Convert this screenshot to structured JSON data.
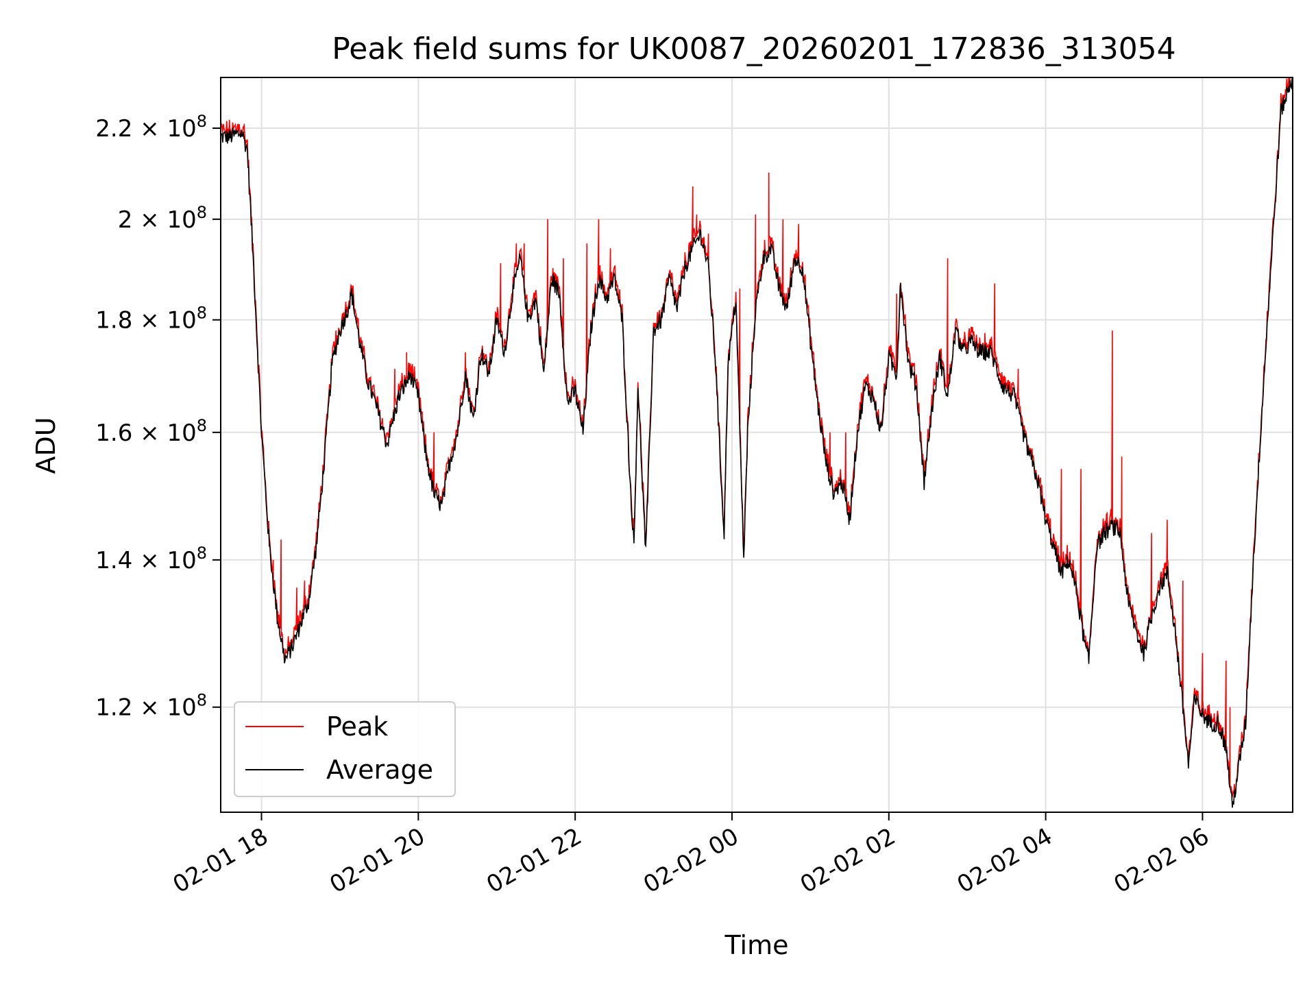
{
  "chart_data": {
    "type": "line",
    "title": "Peak field sums for UK0087_20260201_172836_313054",
    "xlabel": "Time",
    "ylabel": "ADU",
    "yscale": "log",
    "grid": true,
    "legend_position": "lower-left",
    "xlim": [
      17.48,
      31.15
    ],
    "ylim": [
      107500000.0,
      232000000.0
    ],
    "x_ticks": [
      {
        "value": 18,
        "label": "02-01 18"
      },
      {
        "value": 20,
        "label": "02-01 20"
      },
      {
        "value": 22,
        "label": "02-01 22"
      },
      {
        "value": 24,
        "label": "02-02 00"
      },
      {
        "value": 26,
        "label": "02-02 02"
      },
      {
        "value": 28,
        "label": "02-02 04"
      },
      {
        "value": 30,
        "label": "02-02 06"
      }
    ],
    "y_ticks": [
      {
        "value": 120000000.0,
        "mantissa": "1.2",
        "exp": "8"
      },
      {
        "value": 140000000.0,
        "mantissa": "1.4",
        "exp": "8"
      },
      {
        "value": 160000000.0,
        "mantissa": "1.6",
        "exp": "8"
      },
      {
        "value": 180000000.0,
        "mantissa": "1.8",
        "exp": "8"
      },
      {
        "value": 200000000.0,
        "mantissa": "2",
        "exp": "8"
      },
      {
        "value": 220000000.0,
        "mantissa": "2.2",
        "exp": "8"
      }
    ],
    "series": [
      {
        "name": "Peak",
        "color": "#ff0000"
      },
      {
        "name": "Average",
        "color": "#000000"
      }
    ],
    "average_points": [
      [
        17.48,
        218000000.0
      ],
      [
        17.6,
        218000000.0
      ],
      [
        17.75,
        219000000.0
      ],
      [
        17.82,
        215000000.0
      ],
      [
        17.9,
        190000000.0
      ],
      [
        18.0,
        160000000.0
      ],
      [
        18.1,
        142000000.0
      ],
      [
        18.2,
        132000000.0
      ],
      [
        18.3,
        126000000.0
      ],
      [
        18.4,
        128000000.0
      ],
      [
        18.5,
        131000000.0
      ],
      [
        18.6,
        134000000.0
      ],
      [
        18.7,
        142000000.0
      ],
      [
        18.8,
        155000000.0
      ],
      [
        18.9,
        172000000.0
      ],
      [
        19.0,
        178000000.0
      ],
      [
        19.1,
        182000000.0
      ],
      [
        19.15,
        185000000.0
      ],
      [
        19.25,
        176000000.0
      ],
      [
        19.35,
        169000000.0
      ],
      [
        19.45,
        165000000.0
      ],
      [
        19.6,
        158000000.0
      ],
      [
        19.75,
        166000000.0
      ],
      [
        19.9,
        170000000.0
      ],
      [
        20.0,
        166000000.0
      ],
      [
        20.1,
        156000000.0
      ],
      [
        20.2,
        150000000.0
      ],
      [
        20.3,
        148000000.0
      ],
      [
        20.4,
        155000000.0
      ],
      [
        20.5,
        160000000.0
      ],
      [
        20.6,
        170000000.0
      ],
      [
        20.7,
        162000000.0
      ],
      [
        20.8,
        174000000.0
      ],
      [
        20.9,
        170000000.0
      ],
      [
        21.0,
        180000000.0
      ],
      [
        21.1,
        174000000.0
      ],
      [
        21.2,
        185000000.0
      ],
      [
        21.3,
        192000000.0
      ],
      [
        21.4,
        180000000.0
      ],
      [
        21.5,
        184000000.0
      ],
      [
        21.6,
        170000000.0
      ],
      [
        21.7,
        188000000.0
      ],
      [
        21.8,
        185000000.0
      ],
      [
        21.9,
        165000000.0
      ],
      [
        22.0,
        167000000.0
      ],
      [
        22.1,
        160000000.0
      ],
      [
        22.2,
        178000000.0
      ],
      [
        22.3,
        188000000.0
      ],
      [
        22.4,
        184000000.0
      ],
      [
        22.5,
        188000000.0
      ],
      [
        22.6,
        180000000.0
      ],
      [
        22.7,
        152000000.0
      ],
      [
        22.75,
        142000000.0
      ],
      [
        22.8,
        168000000.0
      ],
      [
        22.9,
        141000000.0
      ],
      [
        23.0,
        178000000.0
      ],
      [
        23.1,
        180000000.0
      ],
      [
        23.2,
        188000000.0
      ],
      [
        23.3,
        182000000.0
      ],
      [
        23.4,
        190000000.0
      ],
      [
        23.5,
        194000000.0
      ],
      [
        23.6,
        197000000.0
      ],
      [
        23.7,
        190000000.0
      ],
      [
        23.8,
        170000000.0
      ],
      [
        23.85,
        155000000.0
      ],
      [
        23.9,
        144000000.0
      ],
      [
        23.95,
        172000000.0
      ],
      [
        24.05,
        184000000.0
      ],
      [
        24.1,
        160000000.0
      ],
      [
        24.15,
        140000000.0
      ],
      [
        24.2,
        160000000.0
      ],
      [
        24.3,
        182000000.0
      ],
      [
        24.4,
        192000000.0
      ],
      [
        24.5,
        194000000.0
      ],
      [
        24.6,
        186000000.0
      ],
      [
        24.7,
        182000000.0
      ],
      [
        24.8,
        192000000.0
      ],
      [
        24.9,
        190000000.0
      ],
      [
        25.0,
        176000000.0
      ],
      [
        25.1,
        164000000.0
      ],
      [
        25.2,
        155000000.0
      ],
      [
        25.3,
        150000000.0
      ],
      [
        25.4,
        152000000.0
      ],
      [
        25.5,
        146000000.0
      ],
      [
        25.6,
        160000000.0
      ],
      [
        25.7,
        168000000.0
      ],
      [
        25.8,
        166000000.0
      ],
      [
        25.9,
        160000000.0
      ],
      [
        26.0,
        173000000.0
      ],
      [
        26.1,
        170000000.0
      ],
      [
        26.15,
        187000000.0
      ],
      [
        26.25,
        172000000.0
      ],
      [
        26.35,
        168000000.0
      ],
      [
        26.45,
        152000000.0
      ],
      [
        26.55,
        164000000.0
      ],
      [
        26.65,
        173000000.0
      ],
      [
        26.75,
        166000000.0
      ],
      [
        26.85,
        178000000.0
      ],
      [
        26.95,
        174000000.0
      ],
      [
        27.05,
        176000000.0
      ],
      [
        27.15,
        174000000.0
      ],
      [
        27.3,
        174000000.0
      ],
      [
        27.45,
        168000000.0
      ],
      [
        27.6,
        166000000.0
      ],
      [
        27.75,
        158000000.0
      ],
      [
        27.9,
        152000000.0
      ],
      [
        28.0,
        146000000.0
      ],
      [
        28.1,
        142000000.0
      ],
      [
        28.2,
        138000000.0
      ],
      [
        28.3,
        140000000.0
      ],
      [
        28.4,
        135000000.0
      ],
      [
        28.5,
        128000000.0
      ],
      [
        28.55,
        126000000.0
      ],
      [
        28.65,
        142000000.0
      ],
      [
        28.75,
        144000000.0
      ],
      [
        28.85,
        145000000.0
      ],
      [
        28.95,
        144000000.0
      ],
      [
        29.05,
        134000000.0
      ],
      [
        29.15,
        130000000.0
      ],
      [
        29.25,
        127000000.0
      ],
      [
        29.35,
        132000000.0
      ],
      [
        29.45,
        136000000.0
      ],
      [
        29.55,
        138000000.0
      ],
      [
        29.65,
        130000000.0
      ],
      [
        29.75,
        120000000.0
      ],
      [
        29.82,
        113000000.0
      ],
      [
        29.9,
        121000000.0
      ],
      [
        30.0,
        119000000.0
      ],
      [
        30.1,
        118000000.0
      ],
      [
        30.2,
        118000000.0
      ],
      [
        30.3,
        115000000.0
      ],
      [
        30.38,
        108000000.0
      ],
      [
        30.45,
        112000000.0
      ],
      [
        30.55,
        118000000.0
      ],
      [
        30.65,
        140000000.0
      ],
      [
        30.75,
        162000000.0
      ],
      [
        30.85,
        185000000.0
      ],
      [
        30.95,
        210000000.0
      ],
      [
        31.0,
        224000000.0
      ],
      [
        31.15,
        232000000.0
      ]
    ],
    "peak_spikes": [
      [
        17.7,
        221000000.0
      ],
      [
        17.78,
        221000000.0
      ],
      [
        18.15,
        140000000.0
      ],
      [
        18.25,
        143000000.0
      ],
      [
        18.45,
        136000000.0
      ],
      [
        18.55,
        137000000.0
      ],
      [
        18.95,
        178000000.0
      ],
      [
        19.7,
        171000000.0
      ],
      [
        19.85,
        174000000.0
      ],
      [
        20.2,
        160000000.0
      ],
      [
        20.6,
        174000000.0
      ],
      [
        21.05,
        191000000.0
      ],
      [
        21.25,
        195000000.0
      ],
      [
        21.35,
        195000000.0
      ],
      [
        21.65,
        200000000.0
      ],
      [
        21.85,
        192000000.0
      ],
      [
        22.15,
        195000000.0
      ],
      [
        22.3,
        200000000.0
      ],
      [
        22.45,
        194000000.0
      ],
      [
        23.5,
        207000000.0
      ],
      [
        23.55,
        201000000.0
      ],
      [
        23.7,
        197000000.0
      ],
      [
        24.1,
        186000000.0
      ],
      [
        24.25,
        170000000.0
      ],
      [
        24.3,
        201000000.0
      ],
      [
        24.47,
        210000000.0
      ],
      [
        24.65,
        200000000.0
      ],
      [
        24.85,
        199000000.0
      ],
      [
        25.25,
        160000000.0
      ],
      [
        25.45,
        160000000.0
      ],
      [
        26.1,
        185000000.0
      ],
      [
        26.75,
        192000000.0
      ],
      [
        27.35,
        187000000.0
      ],
      [
        27.65,
        171000000.0
      ],
      [
        28.2,
        154000000.0
      ],
      [
        28.45,
        154000000.0
      ],
      [
        28.85,
        178000000.0
      ],
      [
        28.97,
        156000000.0
      ],
      [
        29.35,
        144000000.0
      ],
      [
        29.55,
        146000000.0
      ],
      [
        29.75,
        137000000.0
      ],
      [
        30.0,
        127000000.0
      ],
      [
        30.3,
        126000000.0
      ],
      [
        30.35,
        120000000.0
      ]
    ]
  }
}
